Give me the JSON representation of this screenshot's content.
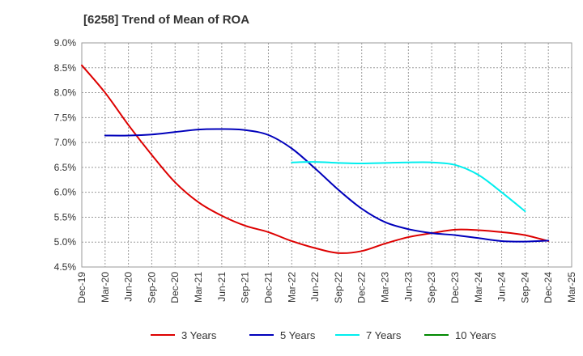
{
  "chart_data": {
    "type": "line",
    "title": "[6258]  Trend of Mean of ROA",
    "xlabel": "",
    "ylabel": "",
    "x_ticks": [
      "Dec-19",
      "Mar-20",
      "Jun-20",
      "Sep-20",
      "Dec-20",
      "Mar-21",
      "Jun-21",
      "Sep-21",
      "Dec-21",
      "Mar-22",
      "Jun-22",
      "Sep-22",
      "Dec-22",
      "Mar-23",
      "Jun-23",
      "Sep-23",
      "Dec-23",
      "Mar-24",
      "Jun-24",
      "Sep-24",
      "Dec-24",
      "Mar-25"
    ],
    "y_ticks": [
      "9.0%",
      "8.5%",
      "8.0%",
      "7.5%",
      "7.0%",
      "6.5%",
      "6.0%",
      "5.5%",
      "5.0%",
      "4.5%"
    ],
    "ylim": [
      4.5,
      9.0
    ],
    "y_unit": "%",
    "grid": true,
    "legend_position": "bottom",
    "series": [
      {
        "name": "3 Years",
        "color": "#dd0000",
        "start_index": 0,
        "values": [
          8.55,
          8.0,
          7.35,
          6.75,
          6.2,
          5.8,
          5.53,
          5.33,
          5.2,
          5.02,
          4.88,
          4.78,
          4.82,
          4.97,
          5.1,
          5.18,
          5.25,
          5.24,
          5.2,
          5.14,
          5.02
        ]
      },
      {
        "name": "5 Years",
        "color": "#0000bb",
        "start_index": 1,
        "values": [
          7.14,
          7.14,
          7.16,
          7.21,
          7.26,
          7.27,
          7.25,
          7.15,
          6.88,
          6.48,
          6.05,
          5.67,
          5.4,
          5.26,
          5.18,
          5.14,
          5.08,
          5.02,
          5.01,
          5.03
        ]
      },
      {
        "name": "7 Years",
        "color": "#00eeee",
        "start_index": 9,
        "values": [
          6.6,
          6.61,
          6.59,
          6.58,
          6.59,
          6.6,
          6.6,
          6.55,
          6.35,
          6.0,
          5.62
        ]
      },
      {
        "name": "10 Years",
        "color": "#008800",
        "start_index": 0,
        "values": []
      }
    ]
  }
}
